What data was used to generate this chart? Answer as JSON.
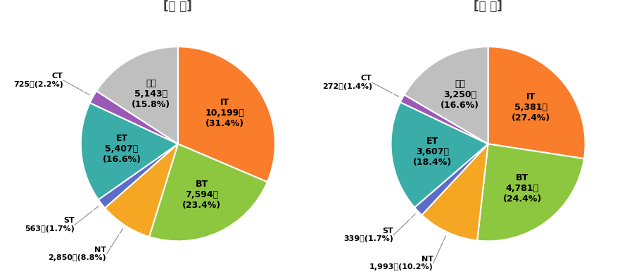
{
  "left_title": "[출 원]",
  "right_title": "[등 록]",
  "left_slices": [
    {
      "label": "IT",
      "value": 10199,
      "pct": "31.4%",
      "color": "#F97D2B"
    },
    {
      "label": "BT",
      "value": 7594,
      "pct": "23.4%",
      "color": "#8DC63F"
    },
    {
      "label": "NT",
      "value": 2850,
      "pct": "8.8%",
      "color": "#F5A623"
    },
    {
      "label": "ST",
      "value": 563,
      "pct": "1.7%",
      "color": "#5B6DC8"
    },
    {
      "label": "ET",
      "value": 5407,
      "pct": "16.6%",
      "color": "#3AADA8"
    },
    {
      "label": "CT",
      "value": 725,
      "pct": "2.2%",
      "color": "#9B59B6"
    },
    {
      "label": "기타",
      "value": 5143,
      "pct": "15.8%",
      "color": "#BFBFBF"
    }
  ],
  "right_slices": [
    {
      "label": "IT",
      "value": 5381,
      "pct": "27.4%",
      "color": "#F97D2B"
    },
    {
      "label": "BT",
      "value": 4781,
      "pct": "24.4%",
      "color": "#8DC63F"
    },
    {
      "label": "NT",
      "value": 1993,
      "pct": "10.2%",
      "color": "#F5A623"
    },
    {
      "label": "ST",
      "value": 339,
      "pct": "1.7%",
      "color": "#5B6DC8"
    },
    {
      "label": "ET",
      "value": 3607,
      "pct": "18.4%",
      "color": "#3AADA8"
    },
    {
      "label": "CT",
      "value": 272,
      "pct": "1.4%",
      "color": "#9B59B6"
    },
    {
      "label": "기타",
      "value": 3250,
      "pct": "16.6%",
      "color": "#BFBFBF"
    }
  ],
  "inner_label_slices": [
    "IT",
    "BT",
    "ET",
    "기타"
  ],
  "background_color": "#FFFFFF",
  "title_color": "#4F4F4F",
  "title_bracket_color_left": "#E07030",
  "title_bracket_color_right": "#4F7ABF"
}
